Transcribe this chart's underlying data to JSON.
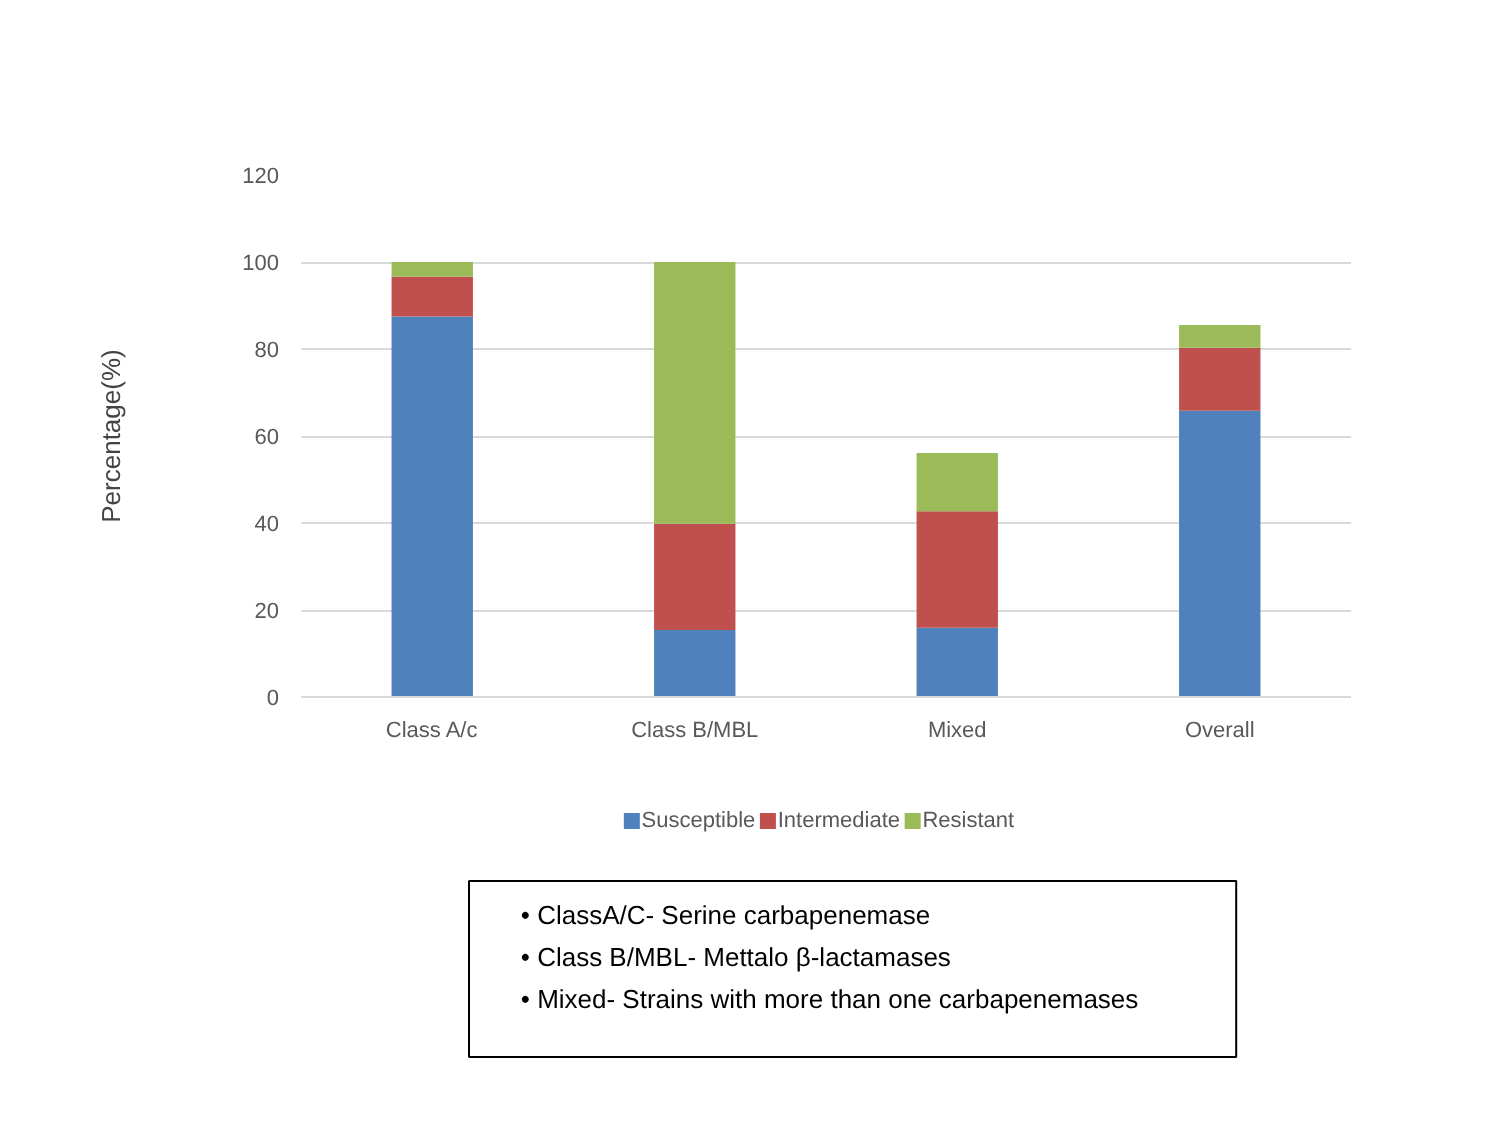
{
  "chart_data": {
    "type": "bar",
    "stacked": true,
    "ylabel": "Percentage(%)",
    "categories": [
      "Class A/c",
      "Class B/MBL",
      "Mixed",
      "Overall"
    ],
    "series": [
      {
        "name": "Susceptible",
        "color": "#4f81bd",
        "values": [
          87.5,
          15.4,
          15.9,
          65.8
        ]
      },
      {
        "name": "Intermediate",
        "color": "#c0504d",
        "values": [
          9.1,
          24.4,
          26.8,
          14.5
        ]
      },
      {
        "name": "Resistant",
        "color": "#9bbb59",
        "values": [
          3.4,
          60.2,
          13.4,
          5.2
        ]
      }
    ],
    "ylim": [
      0,
      120
    ],
    "yticks": [
      0,
      20,
      40,
      60,
      80,
      100,
      120
    ],
    "grid": "y",
    "legend": "bottom",
    "annotations": [
      "• ClassA/C- Serine carbapenemase",
      "• Class B/MBL- Mettalo β-lactamases",
      "• Mixed- Strains with more than one carbapenemases"
    ]
  }
}
